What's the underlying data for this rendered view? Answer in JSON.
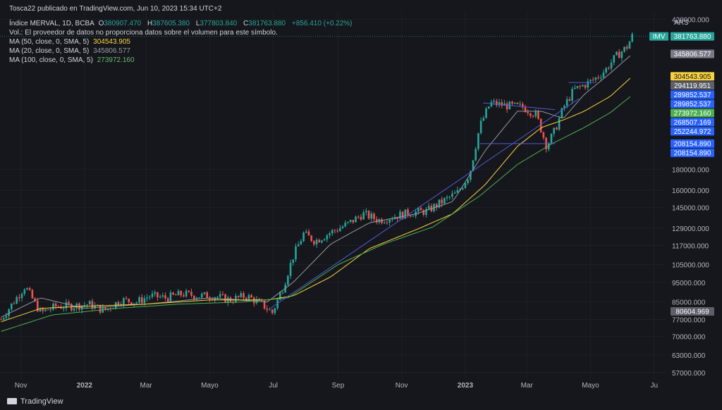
{
  "header": {
    "published": "Tosca22 publicado en TradingView.com, Jun 10, 2023 15:34 UTC+2",
    "symbol": "Índice MERVAL, 1D, BCBA",
    "o_label": "O",
    "o_value": "380907.470",
    "h_label": "H",
    "h_value": "387605.380",
    "l_label": "L",
    "l_value": "377803.840",
    "c_label": "C",
    "c_value": "381763.880",
    "change": "+856.410 (+0.22%)",
    "volume_note": "Vol.: El proveedor de datos no proporciona datos sobre el volumen para este símbolo.",
    "ma50_label": "MA (50, close, 0, SMA, 5)",
    "ma50_value": "304543.905",
    "ma20_label": "MA (20, close, 0, SMA, 5)",
    "ma20_value": "345806.577",
    "ma100_label": "MA (100, close, 0, SMA, 5)",
    "ma100_value": "273972.160"
  },
  "footer": {
    "brand": "TradingView"
  },
  "colors": {
    "background": "#16171c",
    "grid": "#1e2027",
    "up": "#26a69a",
    "down": "#ef5350",
    "ma50": "#f7d23e",
    "ma20": "#9598a1",
    "ma100": "#4caf50",
    "trendline": "#4f5bd5"
  },
  "chart_data": {
    "type": "candlestick",
    "title": "Índice MERVAL, 1D, BCBA",
    "currency": "ARS",
    "scale": "log",
    "ylim": [
      55000,
      440000
    ],
    "y_ticks": [
      "420000.000",
      "180000.000",
      "160000.000",
      "145000.000",
      "129000.000",
      "117000.000",
      "105000.000",
      "95000.000",
      "85000.000",
      "77000.000",
      "70000.000",
      "63000.000",
      "57000.000"
    ],
    "x_ticks": [
      "Nov",
      "2022",
      "Mar",
      "Mayo",
      "Jul",
      "Sep",
      "Nov",
      "2023",
      "Mar",
      "Mayo",
      "Ju"
    ],
    "x_range": [
      "2021-10-12",
      "2023-07-12"
    ],
    "tick_dates": [
      "2021-11-01",
      "2022-01-01",
      "2022-03-01",
      "2022-05-01",
      "2022-07-01",
      "2022-09-01",
      "2022-11-01",
      "2023-01-01",
      "2023-03-01",
      "2023-05-01",
      "2023-07-01"
    ],
    "bold_ticks": [
      "2022",
      "2023"
    ],
    "price_series": {
      "dates": [
        "2021-10-13",
        "2021-10-25",
        "2021-11-05",
        "2021-11-15",
        "2021-11-20",
        "2021-12-05",
        "2021-12-20",
        "2022-01-05",
        "2022-01-20",
        "2022-02-05",
        "2022-02-20",
        "2022-03-05",
        "2022-03-20",
        "2022-04-05",
        "2022-04-20",
        "2022-05-05",
        "2022-05-20",
        "2022-06-05",
        "2022-06-20",
        "2022-06-30",
        "2022-07-10",
        "2022-07-20",
        "2022-07-30",
        "2022-08-10",
        "2022-08-25",
        "2022-09-10",
        "2022-09-25",
        "2022-10-10",
        "2022-10-25",
        "2022-11-10",
        "2022-11-25",
        "2022-12-10",
        "2022-12-25",
        "2023-01-05",
        "2023-01-15",
        "2023-01-25",
        "2023-02-10",
        "2023-02-25",
        "2023-03-10",
        "2023-03-20",
        "2023-03-28",
        "2023-04-05",
        "2023-04-15",
        "2023-04-25",
        "2023-05-05",
        "2023-05-15",
        "2023-05-25",
        "2023-06-05",
        "2023-06-10"
      ],
      "close": [
        77000,
        85000,
        93000,
        84000,
        80000,
        83000,
        83000,
        84000,
        81000,
        86000,
        85000,
        88000,
        87000,
        89000,
        88000,
        88000,
        86000,
        88000,
        84000,
        80000,
        92000,
        110000,
        125000,
        120000,
        126000,
        132000,
        140000,
        135000,
        138000,
        141000,
        142000,
        150000,
        158000,
        175000,
        230000,
        262000,
        258000,
        256000,
        245000,
        205000,
        225000,
        255000,
        282000,
        290000,
        300000,
        315000,
        340000,
        360000,
        381763
      ]
    },
    "ma_series": [
      {
        "name": "MA (20, close, 0, SMA, 5)",
        "dates": [
          "2021-10-13",
          "2021-11-20",
          "2022-01-01",
          "2022-03-01",
          "2022-05-01",
          "2022-06-25",
          "2022-07-20",
          "2022-08-25",
          "2022-10-01",
          "2022-11-15",
          "2022-12-20",
          "2023-01-20",
          "2023-02-20",
          "2023-03-15",
          "2023-04-05",
          "2023-04-25",
          "2023-05-20",
          "2023-06-10"
        ],
        "values": [
          78000,
          87000,
          82000,
          84000,
          87000,
          85000,
          95000,
          118000,
          133000,
          140000,
          150000,
          200000,
          250000,
          250000,
          240000,
          275000,
          310000,
          345806
        ]
      },
      {
        "name": "MA (50, close, 0, SMA, 5)",
        "dates": [
          "2021-10-13",
          "2021-11-20",
          "2022-01-01",
          "2022-03-01",
          "2022-05-01",
          "2022-06-25",
          "2022-07-20",
          "2022-08-25",
          "2022-10-01",
          "2022-11-15",
          "2022-12-20",
          "2023-01-20",
          "2023-02-20",
          "2023-03-15",
          "2023-04-05",
          "2023-04-25",
          "2023-05-20",
          "2023-06-10"
        ],
        "values": [
          76000,
          82000,
          83000,
          84000,
          86000,
          86000,
          88000,
          98000,
          115000,
          128000,
          140000,
          165000,
          205000,
          228000,
          238000,
          250000,
          272000,
          304543
        ]
      },
      {
        "name": "MA (100, close, 0, SMA, 5)",
        "dates": [
          "2021-10-13",
          "2021-12-01",
          "2022-02-01",
          "2022-04-01",
          "2022-06-01",
          "2022-07-15",
          "2022-09-01",
          "2022-10-15",
          "2022-12-01",
          "2023-01-15",
          "2023-02-20",
          "2023-03-25",
          "2023-04-25",
          "2023-05-20",
          "2023-06-10"
        ],
        "values": [
          72000,
          79000,
          82000,
          84000,
          85000,
          87000,
          105000,
          118000,
          130000,
          155000,
          185000,
          208000,
          228000,
          248000,
          273972
        ]
      }
    ],
    "trendlines": [
      {
        "dates": [
          "2023-01-18",
          "2023-03-28"
        ],
        "values": [
          262000,
          252244
        ]
      },
      {
        "dates": [
          "2023-01-15",
          "2023-03-28"
        ],
        "values": [
          208154,
          208154
        ]
      },
      {
        "dates": [
          "2023-04-10",
          "2023-05-05"
        ],
        "values": [
          294119,
          294119
        ]
      },
      {
        "dates": [
          "2022-06-28",
          "2023-04-20"
        ],
        "values": [
          82000,
          268507
        ]
      }
    ],
    "price_labels": [
      {
        "text": "IMV",
        "value": "381763.880",
        "price": 381763.88,
        "bg": "#26a69a",
        "fg": "#ffffff"
      },
      {
        "text": "",
        "value": "345806.577",
        "price": 345806.577,
        "bg": "#787b86",
        "fg": "#ffffff"
      },
      {
        "text": "",
        "value": "304543.905",
        "price": 304543.905,
        "bg": "#f7d23e",
        "fg": "#131722"
      },
      {
        "text": "",
        "value": "294119.951",
        "price": 294119.951,
        "bg": "#5d606b",
        "fg": "#ffffff"
      },
      {
        "text": "",
        "value": "289852.537",
        "price": 289852.537,
        "bg": "#2962ff",
        "fg": "#ffffff"
      },
      {
        "text": "",
        "value": "289852.537",
        "price": 289852.537,
        "bg": "#2962ff",
        "fg": "#ffffff"
      },
      {
        "text": "",
        "value": "273972.160",
        "price": 273972.16,
        "bg": "#4caf50",
        "fg": "#ffffff"
      },
      {
        "text": "",
        "value": "268507.169",
        "price": 268507.169,
        "bg": "#2962ff",
        "fg": "#ffffff"
      },
      {
        "text": "",
        "value": "252244.972",
        "price": 252244.972,
        "bg": "#2962ff",
        "fg": "#ffffff"
      },
      {
        "text": "",
        "value": "208154.890",
        "price": 208154.89,
        "bg": "#2962ff",
        "fg": "#ffffff"
      },
      {
        "text": "",
        "value": "208154.890",
        "price": 208154.89,
        "bg": "#2962ff",
        "fg": "#ffffff"
      },
      {
        "text": "",
        "value": "80604.969",
        "price": 80604.969,
        "bg": "#5d606b",
        "fg": "#ffffff"
      }
    ]
  }
}
